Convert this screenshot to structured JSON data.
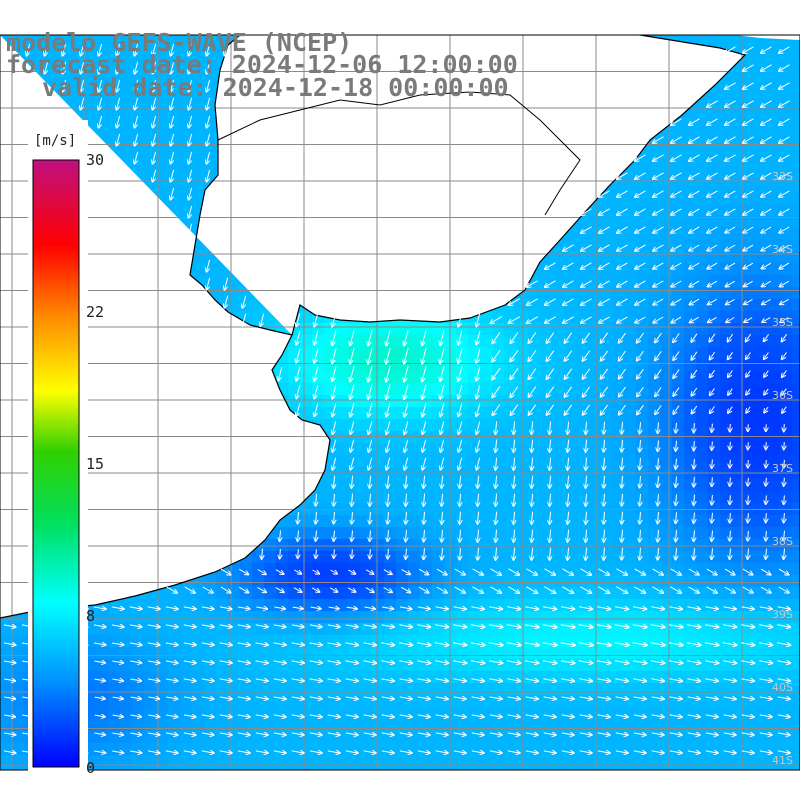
{
  "title": {
    "model": "modelo GEFS-WAVE (NCEP)",
    "forecast": "forecast date: 2024-12-06 12:00:00",
    "valid": "valid date: 2024-12-18 00:00:00"
  },
  "colorbar": {
    "unit": "[m/s]",
    "ticks": [
      {
        "value": 30,
        "label": "30"
      },
      {
        "value": 22,
        "label": "22"
      },
      {
        "value": 15,
        "label": "15"
      },
      {
        "value": 8,
        "label": "8"
      },
      {
        "value": 0,
        "label": "0"
      }
    ],
    "colors": [
      "#0000ff",
      "#00a0ff",
      "#00ffff",
      "#00ff00",
      "#ffff00",
      "#ff8000",
      "#ff0000",
      "#c0107a"
    ]
  },
  "latitude_labels": [
    "33S",
    "34S",
    "35S",
    "36S",
    "37S",
    "38S",
    "39S",
    "40S",
    "41S"
  ],
  "chart_data": {
    "type": "heatmap",
    "variable": "wind speed and direction",
    "unit": "m/s",
    "color_range": [
      0,
      30
    ],
    "fields": [
      {
        "region": "Río de la Plata estuary",
        "speed_ms": 9,
        "direction": "SSW"
      },
      {
        "region": "offshore north of 36S",
        "speed_ms": 5,
        "direction": "SW"
      },
      {
        "region": "offshore 36S–38S",
        "speed_ms": 4,
        "direction": "S"
      },
      {
        "region": "south of 39S",
        "speed_ms": 7,
        "direction": "E"
      }
    ]
  }
}
